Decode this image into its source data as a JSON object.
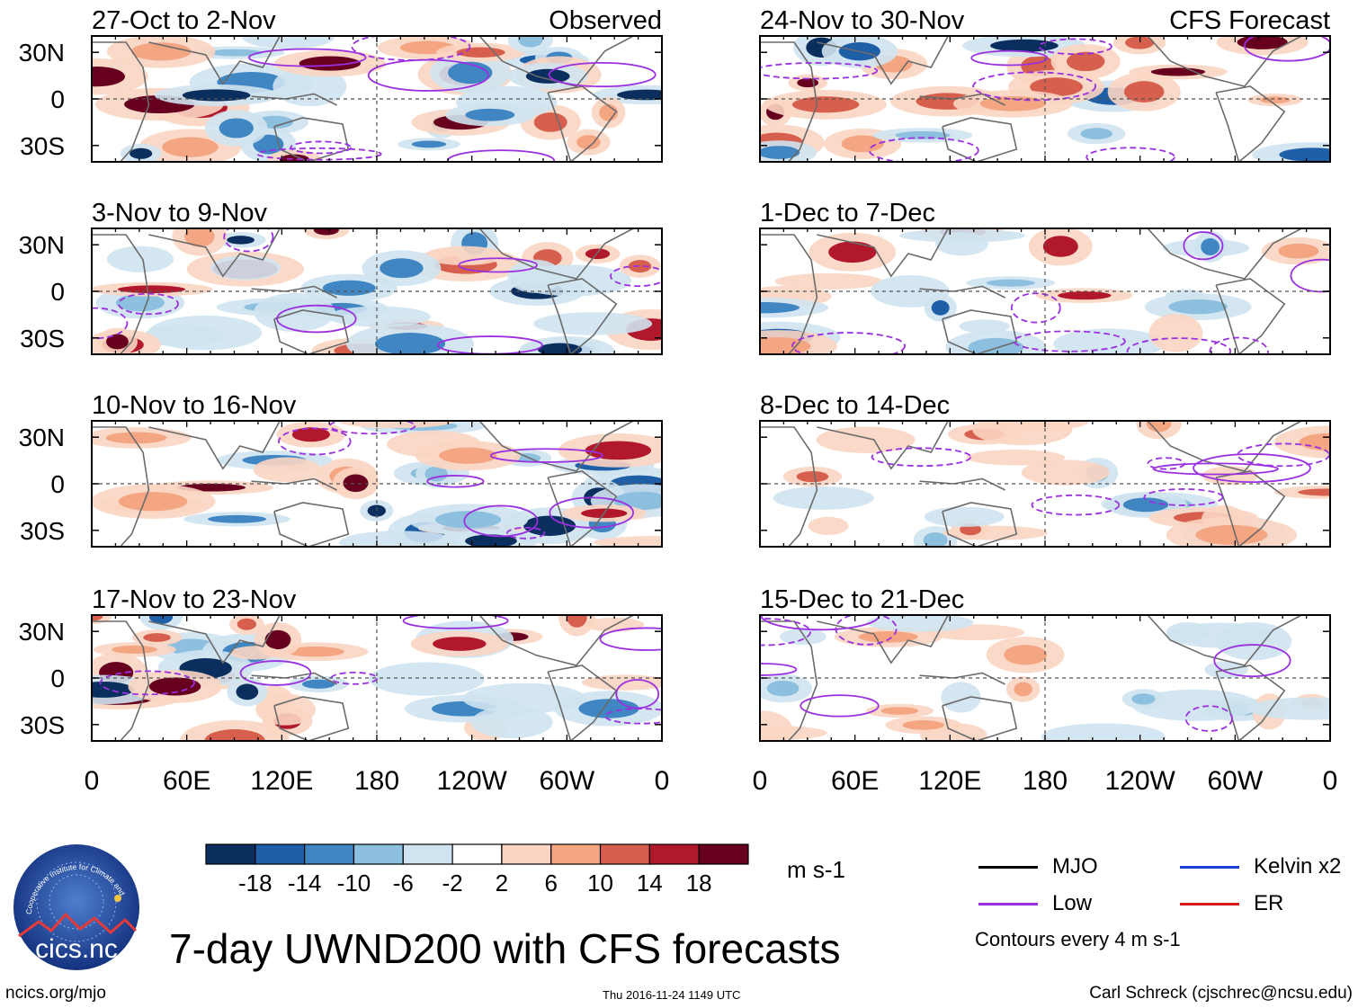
{
  "chart_data": {
    "type": "heatmap",
    "title": "7-day UWND200 with CFS forecasts",
    "variable": "UWND200",
    "units": "m s-1",
    "contour_note": "Contours every 4 m s-1",
    "column_headers": [
      "Observed",
      "CFS Forecast"
    ],
    "x_ticks": [
      "0",
      "60E",
      "120E",
      "180",
      "120W",
      "60W",
      "0"
    ],
    "y_ticks": [
      "30N",
      "0",
      "30S"
    ],
    "colorbar": {
      "levels": [
        "-18",
        "-14",
        "-10",
        "-6",
        "-2",
        "2",
        "6",
        "10",
        "14",
        "18"
      ],
      "colors": [
        "#0a2f5e",
        "#1f5fa8",
        "#3f86c2",
        "#8dbfde",
        "#cfe3f0",
        "#ffffff",
        "#fbd5c2",
        "#f4a582",
        "#d6604d",
        "#b2182b",
        "#67001f"
      ]
    },
    "panels": [
      {
        "column": "Observed",
        "period": "27-Oct to 2-Nov"
      },
      {
        "column": "Observed",
        "period": "3-Nov to 9-Nov"
      },
      {
        "column": "Observed",
        "period": "10-Nov to 16-Nov"
      },
      {
        "column": "Observed",
        "period": "17-Nov to 23-Nov"
      },
      {
        "column": "CFS Forecast",
        "period": "24-Nov to 30-Nov"
      },
      {
        "column": "CFS Forecast",
        "period": "1-Dec to 7-Dec"
      },
      {
        "column": "CFS Forecast",
        "period": "8-Dec to 14-Dec"
      },
      {
        "column": "CFS Forecast",
        "period": "15-Dec to 21-Dec"
      }
    ],
    "legend": [
      {
        "label": "MJO",
        "color": "#000000"
      },
      {
        "label": "Kelvin x2",
        "color": "#1f3fd8"
      },
      {
        "label": "Low",
        "color": "#9b30e0"
      },
      {
        "label": "ER",
        "color": "#d61a1a"
      }
    ]
  },
  "footer": {
    "left": "ncics.org/mjo",
    "center": "Thu 2016-11-24 1149 UTC",
    "right": "Carl Schreck (cjschrec@ncsu.edu)"
  },
  "logo": {
    "text": "cics.nc",
    "ring_text": "Cooperative Institute for Climate and Satellites"
  }
}
